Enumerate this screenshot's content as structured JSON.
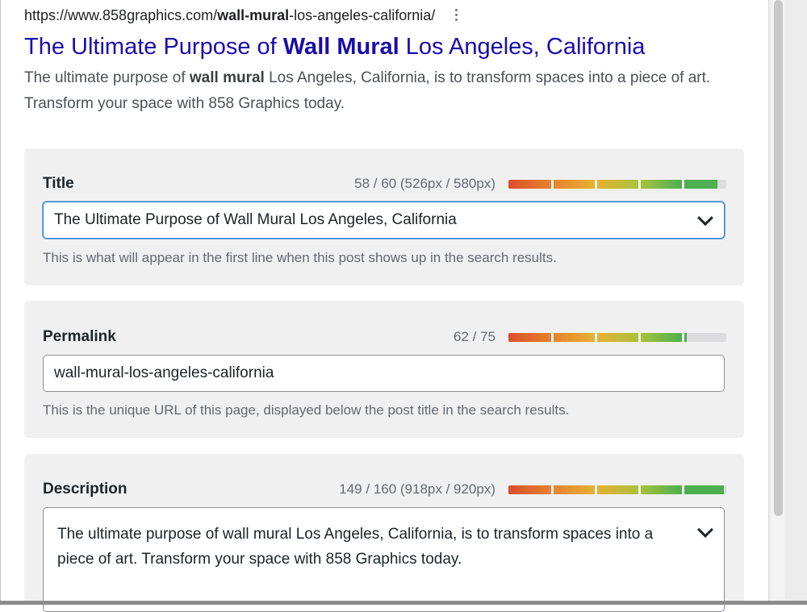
{
  "serp": {
    "url_prefix": "https://www.858graphics.com/",
    "url_bold": "wall-mural",
    "url_suffix": "-los-angeles-california/",
    "title_prefix": "The Ultimate Purpose of ",
    "title_bold": "Wall Mural",
    "title_suffix": " Los Angeles, California",
    "desc_prefix": "The ultimate purpose of ",
    "desc_bold": "wall mural",
    "desc_suffix": " Los Angeles, California, is to transform spaces into a piece of art. Transform your space with 858 Graphics today.",
    "menu_icon": "more-vert-icon"
  },
  "title_field": {
    "label": "Title",
    "counter": "58 / 60 (526px / 580px)",
    "meter_fraction": 0.96,
    "value": "The Ultimate Purpose of Wall Mural Los Angeles, California",
    "help": "This is what will appear in the first line when this post shows up in the search results."
  },
  "permalink_field": {
    "label": "Permalink",
    "counter": "62 / 75",
    "meter_fraction": 0.82,
    "value": "wall-mural-los-angeles-california",
    "help": "This is the unique URL of this page, displayed below the post title in the search results."
  },
  "description_field": {
    "label": "Description",
    "counter": "149 / 160 (918px / 920px)",
    "meter_fraction": 0.99,
    "value": "The ultimate purpose of wall mural Los Angeles, California, is to transform spaces into a piece of art. Transform your space with 858 Graphics today."
  },
  "meter_colors": [
    "#d94f2b",
    "#e8822e",
    "#e6b133",
    "#a9c23b",
    "#4caf50"
  ]
}
